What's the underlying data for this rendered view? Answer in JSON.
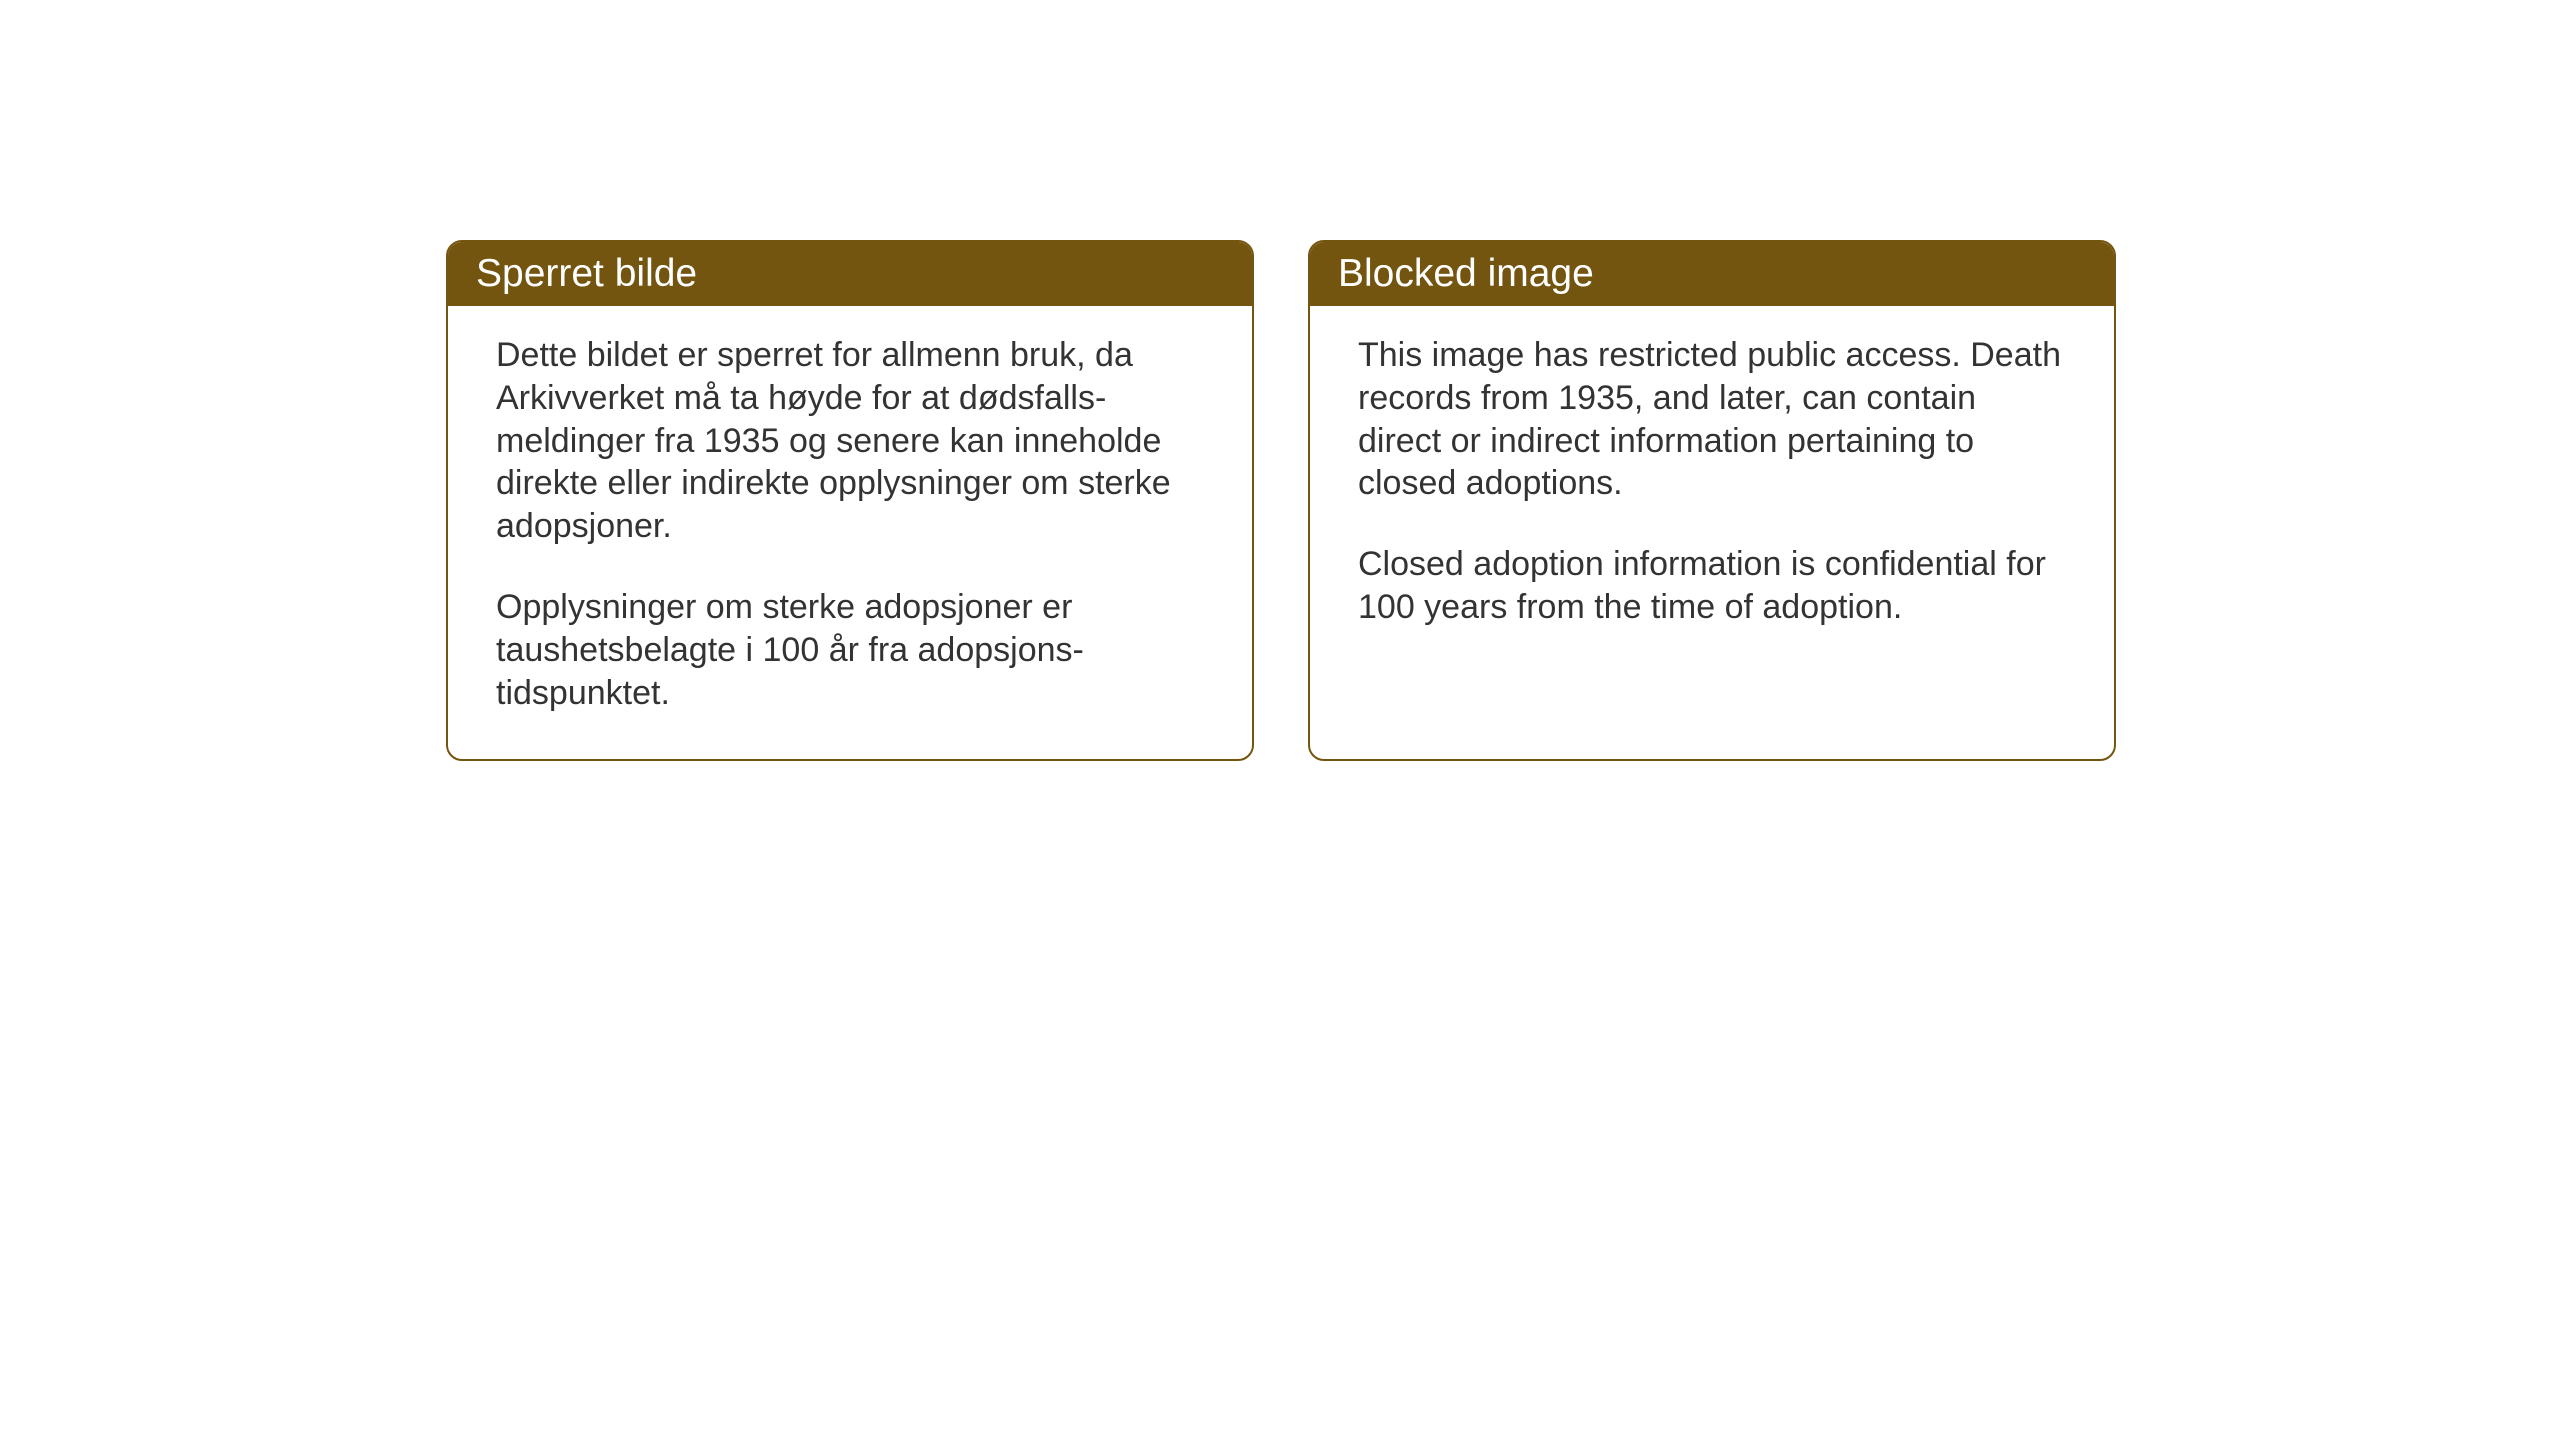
{
  "layout": {
    "background_color": "#ffffff",
    "card_border_color": "#74550f",
    "header_bg_color": "#74550f",
    "header_text_color": "#ffffff",
    "body_text_color": "#333333",
    "card_border_radius": 16,
    "header_fontsize": 39,
    "body_fontsize": 34
  },
  "cards": {
    "norwegian": {
      "title": "Sperret bilde",
      "paragraph1": "Dette bildet er sperret for allmenn bruk, da Arkivverket må ta høyde for at dødsfalls-meldinger fra 1935 og senere kan inneholde direkte eller indirekte opplysninger om sterke adopsjoner.",
      "paragraph2": "Opplysninger om sterke adopsjoner er taushetsbelagte i 100 år fra adopsjons-tidspunktet."
    },
    "english": {
      "title": "Blocked image",
      "paragraph1": "This image has restricted public access. Death records from 1935, and later, can contain direct or indirect information pertaining to closed adoptions.",
      "paragraph2": "Closed adoption information is confidential for 100 years from the time of adoption."
    }
  }
}
